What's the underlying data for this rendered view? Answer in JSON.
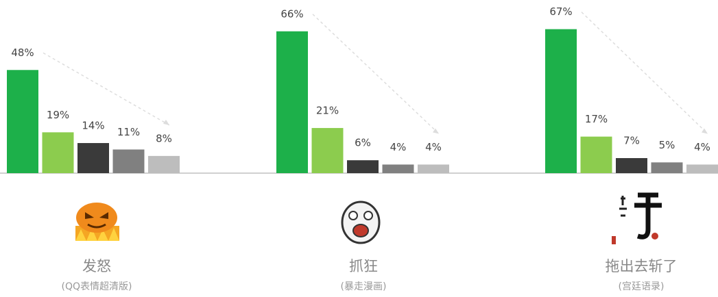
{
  "chart_data": [
    {
      "type": "bar",
      "title": "发怒",
      "subtitle": "(QQ表情超清版)",
      "values": [
        48,
        19,
        14,
        11,
        8
      ],
      "value_labels": [
        "48%",
        "19%",
        "14%",
        "11%",
        "8%"
      ],
      "colors": [
        "#1db04a",
        "#8ccc4e",
        "#3a3a3a",
        "#808080",
        "#bdbdbd"
      ]
    },
    {
      "type": "bar",
      "title": "抓狂",
      "subtitle": "(暴走漫画)",
      "values": [
        66,
        21,
        6,
        4,
        4
      ],
      "value_labels": [
        "66%",
        "21%",
        "6%",
        "4%",
        "4%"
      ],
      "colors": [
        "#1db04a",
        "#8ccc4e",
        "#3a3a3a",
        "#808080",
        "#bdbdbd"
      ]
    },
    {
      "type": "bar",
      "title": "拖出去斩了",
      "subtitle": "(宫廷语录)",
      "values": [
        67,
        17,
        7,
        5,
        4
      ],
      "value_labels": [
        "67%",
        "17%",
        "7%",
        "5%",
        "4%"
      ],
      "colors": [
        "#1db04a",
        "#8ccc4e",
        "#3a3a3a",
        "#808080",
        "#bdbdbd"
      ]
    }
  ]
}
